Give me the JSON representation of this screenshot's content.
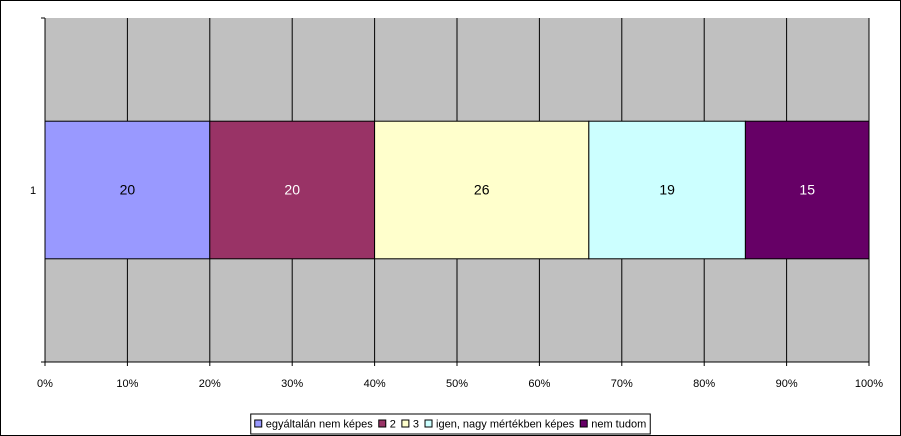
{
  "chart_data": {
    "type": "stacked_bar_horizontal",
    "categories": [
      "1"
    ],
    "series": [
      {
        "name": "egyáltalán nem képes",
        "color": "#9999ff",
        "values": [
          20
        ]
      },
      {
        "name": "2",
        "color": "#993366",
        "values": [
          20
        ]
      },
      {
        "name": "3",
        "color": "#ffffcc",
        "values": [
          26
        ]
      },
      {
        "name": "igen, nagy mértékben képes",
        "color": "#ccffff",
        "values": [
          19
        ]
      },
      {
        "name": "nem tudom",
        "color": "#660066",
        "values": [
          15
        ]
      }
    ],
    "xlim": [
      0,
      100
    ],
    "xticks": [
      {
        "value": 0,
        "label": "0%"
      },
      {
        "value": 10,
        "label": "10%"
      },
      {
        "value": 20,
        "label": "20%"
      },
      {
        "value": 30,
        "label": "30%"
      },
      {
        "value": 40,
        "label": "40%"
      },
      {
        "value": 50,
        "label": "50%"
      },
      {
        "value": 60,
        "label": "60%"
      },
      {
        "value": 70,
        "label": "70%"
      },
      {
        "value": 80,
        "label": "80%"
      },
      {
        "value": 90,
        "label": "90%"
      },
      {
        "value": 100,
        "label": "100%"
      }
    ],
    "grid": true,
    "plot_background": "#c0c0c0",
    "legend": "bottom"
  }
}
